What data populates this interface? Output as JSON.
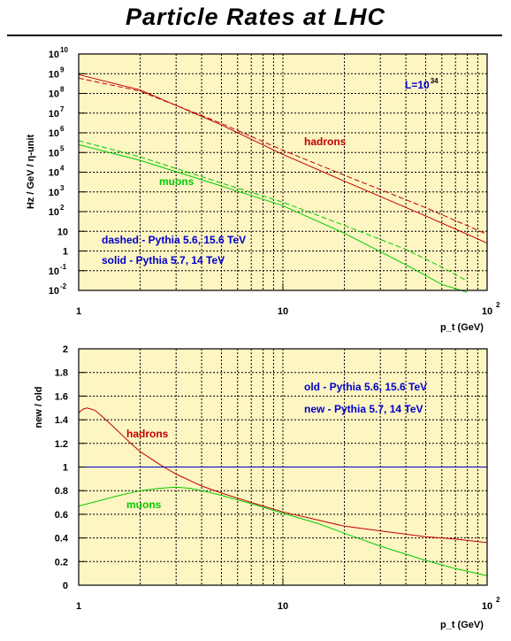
{
  "title": "Particle Rates at LHC",
  "colors": {
    "plot_bg": "#fdf5c2",
    "grid": "#000000",
    "hadrons": "#c00000",
    "muons": "#00cc00",
    "reference": "#0000cc",
    "annotation": "#0000cc"
  },
  "chart_data": [
    {
      "type": "line",
      "x_scale": "log",
      "y_scale": "log",
      "xlim": [
        1,
        100
      ],
      "ylim": [
        0.01,
        10000000000.0
      ],
      "xlabel": "p_t (GeV)",
      "ylabel": "Hz / GeV / η-unit",
      "grid": true,
      "x_ticks": [
        {
          "label": "1",
          "value": 1
        },
        {
          "label": "10",
          "value": 10
        },
        {
          "label": "10",
          "sup": "2",
          "value": 100
        }
      ],
      "y_ticks": [
        {
          "label": "10",
          "sup": "-2",
          "value": 0.01
        },
        {
          "label": "10",
          "sup": "-1",
          "value": 0.1
        },
        {
          "label": "1",
          "value": 1
        },
        {
          "label": "10",
          "value": 10
        },
        {
          "label": "10",
          "sup": "2",
          "value": 100
        },
        {
          "label": "10",
          "sup": "3",
          "value": 1000
        },
        {
          "label": "10",
          "sup": "4",
          "value": 10000
        },
        {
          "label": "10",
          "sup": "5",
          "value": 100000
        },
        {
          "label": "10",
          "sup": "6",
          "value": 1000000
        },
        {
          "label": "10",
          "sup": "7",
          "value": 10000000
        },
        {
          "label": "10",
          "sup": "8",
          "value": 100000000
        },
        {
          "label": "10",
          "sup": "9",
          "value": 1000000000
        },
        {
          "label": "10",
          "sup": "10",
          "value": 10000000000
        }
      ],
      "series": [
        {
          "name": "hadrons",
          "style": "solid",
          "color": "#c00000",
          "x": [
            1,
            2,
            5,
            10,
            20,
            50,
            100
          ],
          "y": [
            900000000.0,
            150000000.0,
            2500000.0,
            80000.0,
            3500.0,
            60,
            2.5
          ]
        },
        {
          "name": "hadrons",
          "style": "dashed",
          "color": "#c00000",
          "x": [
            1,
            2,
            5,
            10,
            20,
            50,
            100
          ],
          "y": [
            600000000.0,
            130000000.0,
            3000000.0,
            130000.0,
            7000.0,
            160,
            7
          ]
        },
        {
          "name": "muons",
          "style": "solid",
          "color": "#00cc00",
          "x": [
            1,
            2,
            5,
            10,
            20,
            40,
            60,
            80
          ],
          "y": [
            250000.0,
            40000.0,
            2000.0,
            200,
            8,
            0.2,
            0.02,
            0.008
          ]
        },
        {
          "name": "muons",
          "style": "dashed",
          "color": "#00cc00",
          "x": [
            1,
            2,
            5,
            10,
            20,
            40,
            60,
            80
          ],
          "y": [
            400000.0,
            60000.0,
            2800.0,
            300,
            20,
            1.2,
            0.15,
            0.03
          ]
        }
      ],
      "annotations": [
        {
          "text": "hadrons",
          "color": "#c00000"
        },
        {
          "text": "muons",
          "color": "#00cc00"
        },
        {
          "text": "L=10",
          "sup": "34",
          "color": "#0000cc"
        },
        {
          "text": "dashed - Pythia 5.6,  15.6 TeV",
          "color": "#0000cc"
        },
        {
          "text": "solid - Pythia 5.7,  14 TeV",
          "color": "#0000cc"
        }
      ]
    },
    {
      "type": "line",
      "x_scale": "log",
      "y_scale": "linear",
      "xlim": [
        1,
        100
      ],
      "ylim": [
        0,
        2
      ],
      "xlabel": "p_t (GeV)",
      "ylabel": "new / old",
      "grid": true,
      "x_ticks": [
        {
          "label": "1",
          "value": 1
        },
        {
          "label": "10",
          "value": 10
        },
        {
          "label": "10",
          "sup": "2",
          "value": 100
        }
      ],
      "y_ticks": [
        {
          "label": "0",
          "value": 0
        },
        {
          "label": "0.2",
          "value": 0.2
        },
        {
          "label": "0.4",
          "value": 0.4
        },
        {
          "label": "0.6",
          "value": 0.6
        },
        {
          "label": "0.8",
          "value": 0.8
        },
        {
          "label": "1",
          "value": 1
        },
        {
          "label": "1.2",
          "value": 1.2
        },
        {
          "label": "1.4",
          "value": 1.4
        },
        {
          "label": "1.6",
          "value": 1.6
        },
        {
          "label": "1.8",
          "value": 1.8
        },
        {
          "label": "2",
          "value": 2
        }
      ],
      "series": [
        {
          "name": "hadrons",
          "color": "#c00000",
          "x": [
            1,
            1.05,
            1.1,
            1.2,
            1.3,
            1.5,
            1.8,
            2,
            2.5,
            3,
            4,
            5,
            7,
            10,
            15,
            20,
            30,
            50,
            70,
            100
          ],
          "y": [
            1.46,
            1.49,
            1.5,
            1.48,
            1.43,
            1.33,
            1.2,
            1.13,
            1.02,
            0.94,
            0.84,
            0.78,
            0.7,
            0.62,
            0.55,
            0.5,
            0.46,
            0.41,
            0.39,
            0.36
          ]
        },
        {
          "name": "muons",
          "color": "#00cc00",
          "x": [
            1,
            1.5,
            2,
            2.5,
            3,
            3.5,
            4,
            5,
            7,
            10,
            15,
            20,
            30,
            50,
            70,
            100
          ],
          "y": [
            0.67,
            0.75,
            0.8,
            0.82,
            0.83,
            0.82,
            0.8,
            0.76,
            0.69,
            0.61,
            0.52,
            0.44,
            0.33,
            0.21,
            0.14,
            0.08
          ]
        },
        {
          "name": "reference",
          "color": "#0000cc",
          "x": [
            1,
            100
          ],
          "y": [
            1,
            1
          ]
        }
      ],
      "annotations": [
        {
          "text": "hadrons",
          "color": "#c00000"
        },
        {
          "text": "muons",
          "color": "#00cc00"
        },
        {
          "text": "old - Pythia 5.6,  15.6 TeV",
          "color": "#0000cc"
        },
        {
          "text": "new - Pythia 5.7,  14 TeV",
          "color": "#0000cc"
        }
      ]
    }
  ]
}
